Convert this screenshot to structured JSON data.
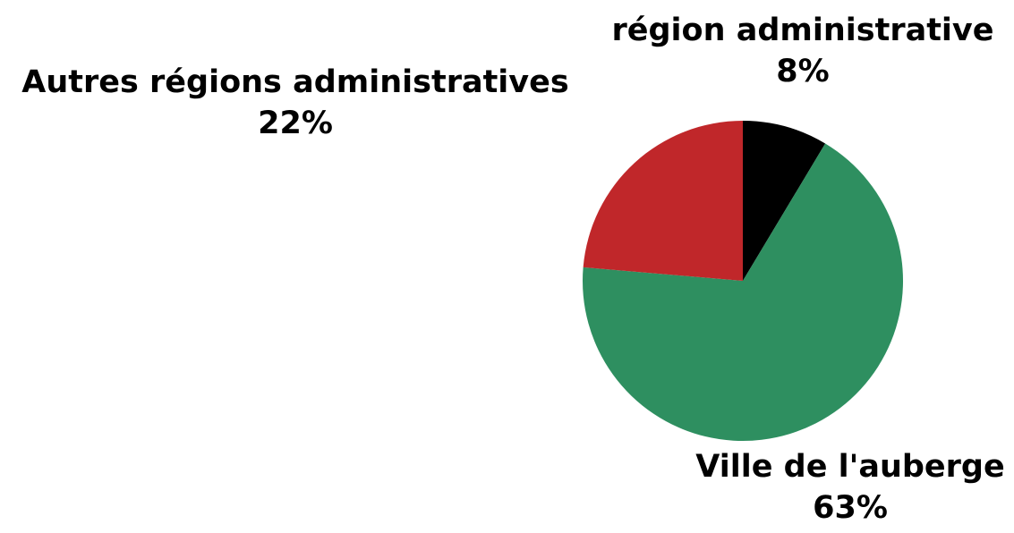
{
  "chart_data": {
    "type": "pie",
    "title": "",
    "categories": [
      "région administrative",
      "Ville de l'auberge",
      "Autres régions administratives"
    ],
    "values": [
      8,
      63,
      22
    ],
    "value_labels": [
      "8%",
      "63%",
      "22%"
    ],
    "colors": [
      "#000000",
      "#2e8f60",
      "#c0272a"
    ],
    "start_angle_deg": 0,
    "direction": "clockwise",
    "legend": "none",
    "slices": [
      {
        "label": "région administrative",
        "value_label": "8%"
      },
      {
        "label": "Ville de l'auberge",
        "value_label": "63%"
      },
      {
        "label": "Autres régions administratives",
        "value_label": "22%"
      }
    ]
  }
}
